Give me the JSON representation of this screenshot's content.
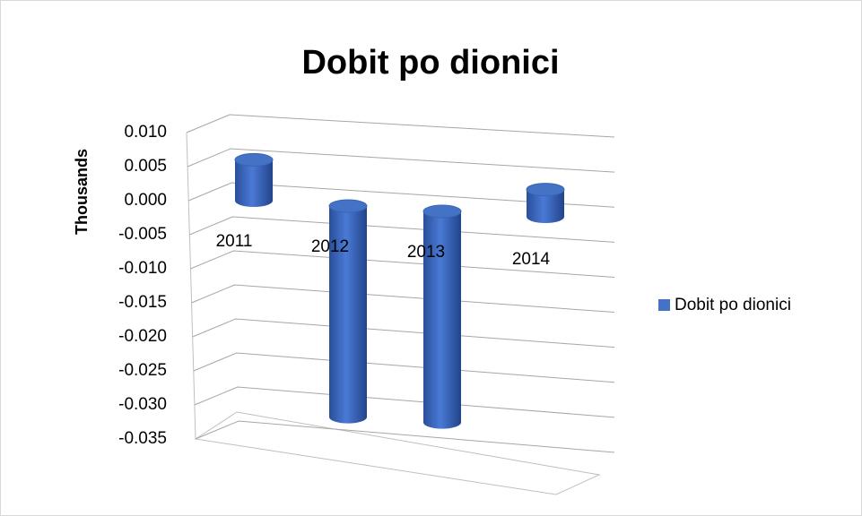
{
  "chart_data": {
    "type": "bar",
    "title": "Dobit po dionici",
    "y_label": "Thousands",
    "categories": [
      "2011",
      "2012",
      "2013",
      "2014"
    ],
    "series": [
      {
        "name": "Dobit po dionici",
        "color": "#4472c4",
        "values": [
          0.006,
          -0.031,
          -0.031,
          0.004
        ]
      }
    ],
    "ylim": [
      -0.035,
      0.01
    ],
    "yticks": [
      {
        "value": 0.01,
        "label": "0.010"
      },
      {
        "value": 0.005,
        "label": "0.005"
      },
      {
        "value": 0,
        "label": "0.000"
      },
      -0.005,
      {
        "value": -0.01,
        "label": "-0.010"
      },
      -0.015,
      {
        "value": -0.02,
        "label": "-0.020"
      },
      -0.025,
      {
        "value": -0.03,
        "label": "-0.030"
      },
      -0.035
    ],
    "grid": true,
    "legend": "right"
  }
}
